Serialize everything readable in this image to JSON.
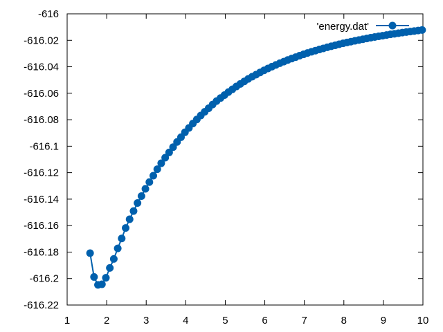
{
  "chart_data": {
    "type": "line",
    "title": "",
    "xlabel": "",
    "ylabel": "",
    "xlim": [
      1,
      10
    ],
    "ylim": [
      -616.22,
      -616.0
    ],
    "xticks": [
      1,
      2,
      3,
      4,
      5,
      6,
      7,
      8,
      9,
      10
    ],
    "yticks": [
      -616,
      -616.02,
      -616.04,
      -616.06,
      -616.08,
      -616.1,
      -616.12,
      -616.14,
      -616.16,
      -616.18,
      -616.2,
      -616.22
    ],
    "ytick_labels": [
      "-616",
      "-616.02",
      "-616.04",
      "-616.06",
      "-616.08",
      "-616.1",
      "-616.12",
      "-616.14",
      "-616.16",
      "-616.18",
      "-616.2",
      "-616.22"
    ],
    "grid": false,
    "legend_position": "top-right",
    "color": "#0060ad",
    "series": [
      {
        "name": "'energy.dat'",
        "x": [
          1.58,
          1.68,
          1.78,
          1.88,
          1.98,
          2.08,
          2.18,
          2.28,
          2.38,
          2.48,
          2.58,
          2.68,
          2.78,
          2.88,
          2.98,
          3.08,
          3.18,
          3.28,
          3.38,
          3.48,
          3.58,
          3.68,
          3.78,
          3.88,
          3.98,
          4.08,
          4.18,
          4.28,
          4.38,
          4.48,
          4.58,
          4.68,
          4.78,
          4.88,
          4.98,
          5.08,
          5.18,
          5.28,
          5.38,
          5.48,
          5.58,
          5.68,
          5.78,
          5.88,
          5.98,
          6.08,
          6.18,
          6.28,
          6.38,
          6.48,
          6.58,
          6.68,
          6.78,
          6.88,
          6.98,
          7.08,
          7.18,
          7.28,
          7.38,
          7.48,
          7.58,
          7.68,
          7.78,
          7.88,
          7.98,
          8.08,
          8.18,
          8.28,
          8.38,
          8.48,
          8.58,
          8.68,
          8.78,
          8.88,
          8.98,
          9.08,
          9.18,
          9.28,
          9.38,
          9.48,
          9.58,
          9.68,
          9.78,
          9.88,
          9.98
        ],
        "y": [
          -616.1808,
          -616.1988,
          -616.2048,
          -616.2043,
          -616.1994,
          -616.192,
          -616.1852,
          -616.1772,
          -616.1697,
          -616.1618,
          -616.1552,
          -616.149,
          -616.1429,
          -616.1377,
          -616.1322,
          -616.1271,
          -616.1223,
          -616.1174,
          -616.1129,
          -616.1087,
          -616.1047,
          -616.1007,
          -616.0968,
          -616.0932,
          -616.0895,
          -616.0862,
          -616.0829,
          -616.0798,
          -616.0768,
          -616.074,
          -616.0713,
          -616.0685,
          -616.0659,
          -616.0636,
          -616.0614,
          -616.0591,
          -616.057,
          -616.0549,
          -616.053,
          -616.0511,
          -616.0492,
          -616.0475,
          -616.0459,
          -616.0443,
          -616.0427,
          -616.0413,
          -616.0399,
          -616.0386,
          -616.0373,
          -616.0361,
          -616.0349,
          -616.0338,
          -616.0327,
          -616.0316,
          -616.0306,
          -616.0296,
          -616.0287,
          -616.0278,
          -616.0269,
          -616.0261,
          -616.0253,
          -616.0245,
          -616.0238,
          -616.023,
          -616.0223,
          -616.0216,
          -616.021,
          -616.0204,
          -616.0198,
          -616.0192,
          -616.0186,
          -616.018,
          -616.0175,
          -616.017,
          -616.0165,
          -616.016,
          -616.0155,
          -616.0151,
          -616.0146,
          -616.0142,
          -616.0138,
          -616.0134,
          -616.013,
          -616.0126,
          -616.0122
        ]
      }
    ]
  }
}
